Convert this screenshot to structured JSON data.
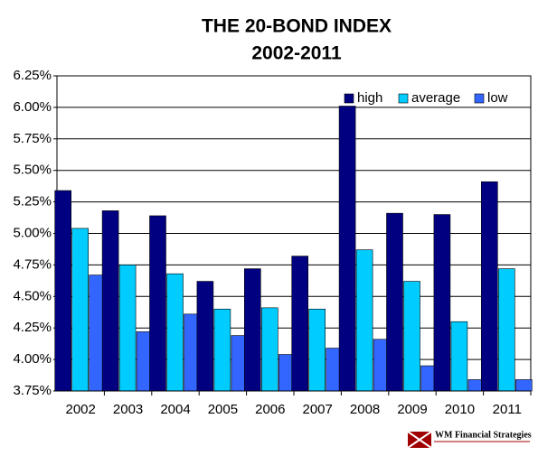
{
  "chart_data": {
    "type": "bar",
    "title": "THE 20-BOND INDEX",
    "subtitle": "2002-2011",
    "categories": [
      "2002",
      "2003",
      "2004",
      "2005",
      "2006",
      "2007",
      "2008",
      "2009",
      "2010",
      "2011"
    ],
    "series": [
      {
        "name": "high",
        "color": "#000080",
        "values": [
          5.34,
          5.18,
          5.14,
          4.62,
          4.72,
          4.82,
          6.01,
          5.16,
          5.15,
          5.41
        ]
      },
      {
        "name": "average",
        "color": "#00ccff",
        "values": [
          5.04,
          4.75,
          4.68,
          4.4,
          4.41,
          4.4,
          4.87,
          4.62,
          4.3,
          4.72
        ]
      },
      {
        "name": "low",
        "color": "#3366ff",
        "values": [
          4.67,
          4.22,
          4.36,
          4.19,
          4.04,
          4.09,
          4.16,
          3.95,
          3.84,
          3.84
        ]
      }
    ],
    "ylim": [
      3.75,
      6.25
    ],
    "yticks": [
      {
        "value": 3.75,
        "label": "3.75%"
      },
      {
        "value": 4.0,
        "label": "4.00%"
      },
      {
        "value": 4.25,
        "label": "4.25%"
      },
      {
        "value": 4.5,
        "label": "4.50%"
      },
      {
        "value": 4.75,
        "label": "4.75%"
      },
      {
        "value": 5.0,
        "label": "5.00%"
      },
      {
        "value": 5.25,
        "label": "5.25%"
      },
      {
        "value": 5.5,
        "label": "5.50%"
      },
      {
        "value": 5.75,
        "label": "5.75%"
      },
      {
        "value": 6.0,
        "label": "6.00%"
      },
      {
        "value": 6.25,
        "label": "6.25%"
      }
    ],
    "grid": true,
    "legend": "top-right",
    "watermark": "WM Financial Strategies"
  }
}
